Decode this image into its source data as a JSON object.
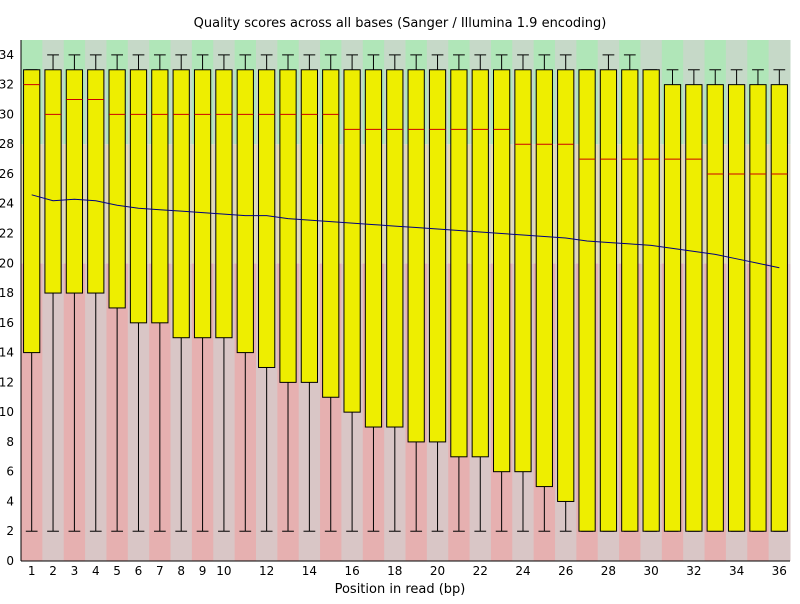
{
  "chart_data": {
    "type": "box",
    "title": "Quality scores across all bases (Sanger / Illumina 1.9 encoding)",
    "xlabel": "Position in read (bp)",
    "ylabel": "",
    "ylim": [
      0,
      35
    ],
    "yticks": [
      0,
      2,
      4,
      6,
      8,
      10,
      12,
      14,
      16,
      18,
      20,
      22,
      24,
      26,
      28,
      30,
      32,
      34
    ],
    "x_tick_labels": [
      "1",
      "2",
      "3",
      "4",
      "5",
      "6",
      "7",
      "8",
      "9",
      "10",
      "12",
      "14",
      "16",
      "18",
      "20",
      "22",
      "24",
      "26",
      "28",
      "30",
      "32",
      "34",
      "36"
    ],
    "bands": [
      {
        "name": "poor",
        "from": 0,
        "to": 20,
        "color": "#e6b0b0",
        "alt_color": "#d9c6c6"
      },
      {
        "name": "reasonable",
        "from": 20,
        "to": 28,
        "color": "#e6dcb0",
        "alt_color": "#d9d5c6"
      },
      {
        "name": "good",
        "from": 28,
        "to": 35,
        "color": "#b0e6b8",
        "alt_color": "#c6d9c8"
      }
    ],
    "colors": {
      "box": "#eeee00",
      "median": "#cc0000",
      "mean": "#000080",
      "whisker": "#000000"
    },
    "positions": [
      1,
      2,
      3,
      4,
      5,
      6,
      7,
      8,
      9,
      10,
      11,
      12,
      13,
      14,
      15,
      16,
      17,
      18,
      19,
      20,
      21,
      22,
      23,
      24,
      25,
      26,
      27,
      28,
      29,
      30,
      31,
      32,
      33,
      34,
      35,
      36
    ],
    "q1": [
      14,
      18,
      18,
      18,
      17,
      16,
      16,
      15,
      15,
      15,
      14,
      13,
      12,
      12,
      11,
      10,
      9,
      9,
      8,
      8,
      7,
      7,
      6,
      6,
      5,
      4,
      2,
      2,
      2,
      2,
      2,
      2,
      2,
      2,
      2,
      2
    ],
    "q3": [
      33,
      33,
      33,
      33,
      33,
      33,
      33,
      33,
      33,
      33,
      33,
      33,
      33,
      33,
      33,
      33,
      33,
      33,
      33,
      33,
      33,
      33,
      33,
      33,
      33,
      33,
      33,
      33,
      33,
      33,
      32,
      32,
      32,
      32,
      32,
      32
    ],
    "median": [
      32,
      30,
      31,
      31,
      30,
      30,
      30,
      30,
      30,
      30,
      30,
      30,
      30,
      30,
      30,
      29,
      29,
      29,
      29,
      29,
      29,
      29,
      29,
      28,
      28,
      28,
      27,
      27,
      27,
      27,
      27,
      27,
      26,
      26,
      26,
      26
    ],
    "whisker_low": [
      2,
      2,
      2,
      2,
      2,
      2,
      2,
      2,
      2,
      2,
      2,
      2,
      2,
      2,
      2,
      2,
      2,
      2,
      2,
      2,
      2,
      2,
      2,
      2,
      2,
      2,
      2,
      2,
      2,
      2,
      2,
      2,
      2,
      2,
      2,
      2
    ],
    "whisker_high": [
      33,
      34,
      34,
      34,
      34,
      34,
      34,
      34,
      34,
      34,
      34,
      34,
      34,
      34,
      34,
      34,
      34,
      34,
      34,
      34,
      34,
      34,
      34,
      34,
      34,
      34,
      33,
      34,
      34,
      33,
      33,
      33,
      33,
      33,
      33,
      33
    ],
    "mean": [
      24.6,
      24.2,
      24.3,
      24.2,
      23.9,
      23.7,
      23.6,
      23.5,
      23.4,
      23.3,
      23.2,
      23.2,
      23.0,
      22.9,
      22.8,
      22.7,
      22.6,
      22.5,
      22.4,
      22.3,
      22.2,
      22.1,
      22.0,
      21.9,
      21.8,
      21.7,
      21.5,
      21.4,
      21.3,
      21.2,
      21.0,
      20.8,
      20.6,
      20.3,
      20.0,
      19.7
    ]
  }
}
